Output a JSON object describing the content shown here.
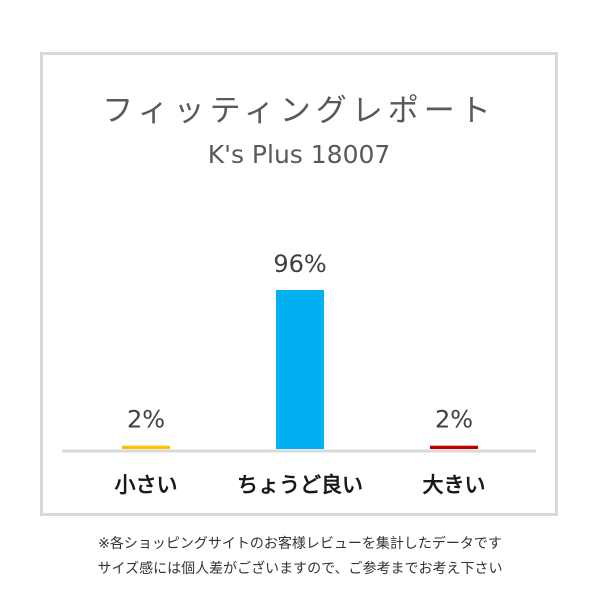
{
  "chart_data": {
    "type": "bar",
    "title": "フィッティングレポート",
    "subtitle": "K's Plus 18007",
    "categories": [
      "小さい",
      "ちょうど良い",
      "大きい"
    ],
    "values": [
      2,
      96,
      2
    ],
    "data_labels": [
      "2%",
      "96%",
      "2%"
    ],
    "colors": [
      "#ffc000",
      "#00b0f0",
      "#c00000"
    ],
    "ylim": [
      0,
      100
    ],
    "grid": false,
    "legend": "none"
  },
  "notes": [
    "※各ショッピングサイトのお客様レビューを集計したデータです",
    "サイズ感には個人差がございますので、ご参考までお考え下さい"
  ]
}
